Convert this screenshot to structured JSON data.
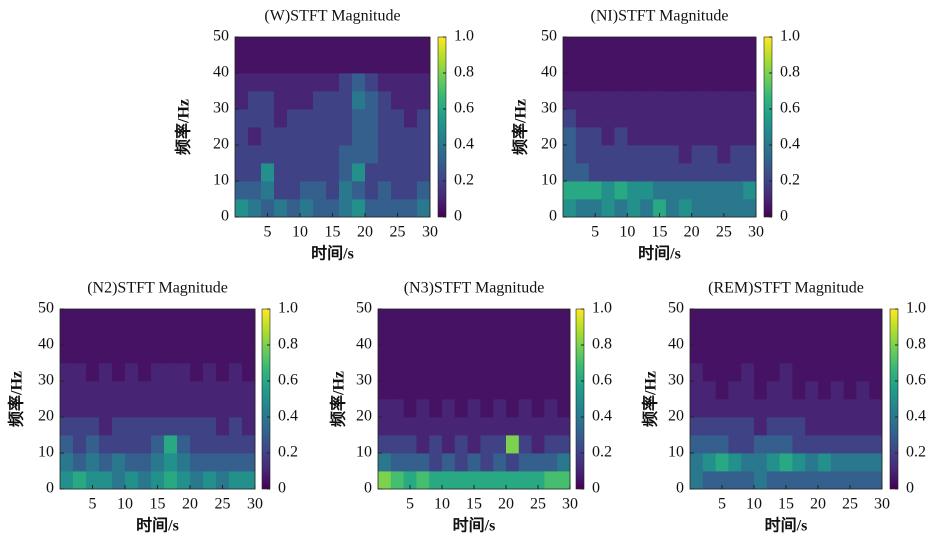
{
  "chart_data": [
    {
      "type": "heatmap",
      "title": "(W)STFT Magnitude",
      "xlabel": "时间/s",
      "ylabel": "频率/Hz",
      "xlim": [
        0,
        30
      ],
      "ylim": [
        0,
        50
      ],
      "xticks": [
        5,
        10,
        15,
        20,
        25,
        30
      ],
      "yticks": [
        0,
        10,
        20,
        30,
        40,
        50
      ],
      "clim": [
        0,
        1
      ],
      "cticks": [
        0,
        0.2,
        0.4,
        0.6,
        0.8,
        {
          "value": 1,
          "label": "1.0"
        }
      ],
      "xbins": [
        0,
        2,
        4,
        6,
        8,
        10,
        12,
        14,
        16,
        18,
        20,
        22,
        24,
        26,
        28,
        30
      ],
      "ybins": [
        0,
        5,
        10,
        15,
        20,
        25,
        30,
        35,
        40,
        45,
        50
      ],
      "z": [
        [
          0.5,
          0.4,
          0.3,
          0.4,
          0.3,
          0.4,
          0.3,
          0.3,
          0.4,
          0.5,
          0.3,
          0.3,
          0.3,
          0.3,
          0.4
        ],
        [
          0.3,
          0.3,
          0.4,
          0.2,
          0.2,
          0.3,
          0.3,
          0.2,
          0.4,
          0.3,
          0.2,
          0.3,
          0.2,
          0.2,
          0.3
        ],
        [
          0.2,
          0.2,
          0.5,
          0.2,
          0.2,
          0.2,
          0.2,
          0.2,
          0.3,
          0.5,
          0.2,
          0.2,
          0.2,
          0.2,
          0.2
        ],
        [
          0.2,
          0.2,
          0.2,
          0.2,
          0.2,
          0.2,
          0.2,
          0.2,
          0.3,
          0.3,
          0.3,
          0.2,
          0.2,
          0.2,
          0.2
        ],
        [
          0.2,
          0.1,
          0.2,
          0.2,
          0.2,
          0.2,
          0.2,
          0.2,
          0.2,
          0.3,
          0.3,
          0.2,
          0.2,
          0.2,
          0.2
        ],
        [
          0.2,
          0.2,
          0.2,
          0.1,
          0.2,
          0.2,
          0.2,
          0.2,
          0.2,
          0.3,
          0.3,
          0.2,
          0.2,
          0.1,
          0.2
        ],
        [
          0.1,
          0.2,
          0.2,
          0.1,
          0.1,
          0.1,
          0.2,
          0.2,
          0.2,
          0.4,
          0.3,
          0.2,
          0.1,
          0.1,
          0.1
        ],
        [
          0.1,
          0.1,
          0.1,
          0.1,
          0.1,
          0.1,
          0.1,
          0.1,
          0.2,
          0.3,
          0.2,
          0.1,
          0.1,
          0.1,
          0.1
        ],
        [
          0.05,
          0.05,
          0.05,
          0.05,
          0.05,
          0.05,
          0.05,
          0.05,
          0.05,
          0.05,
          0.05,
          0.05,
          0.05,
          0.05,
          0.05
        ],
        [
          0.05,
          0.05,
          0.05,
          0.05,
          0.05,
          0.05,
          0.05,
          0.05,
          0.05,
          0.05,
          0.05,
          0.05,
          0.05,
          0.05,
          0.05
        ]
      ]
    },
    {
      "type": "heatmap",
      "title": "(NI)STFT Magnitude",
      "xlabel": "时间/s",
      "ylabel": "频率/Hz",
      "xlim": [
        0,
        30
      ],
      "ylim": [
        0,
        50
      ],
      "xticks": [
        5,
        10,
        15,
        20,
        25,
        30
      ],
      "yticks": [
        0,
        10,
        20,
        30,
        40,
        50
      ],
      "clim": [
        0,
        1
      ],
      "cticks": [
        0,
        0.2,
        0.4,
        0.6,
        0.8,
        {
          "value": 1,
          "label": "1.0"
        }
      ],
      "xbins": [
        0,
        2,
        4,
        6,
        8,
        10,
        12,
        14,
        16,
        18,
        20,
        22,
        24,
        26,
        28,
        30
      ],
      "ybins": [
        0,
        5,
        10,
        15,
        20,
        25,
        30,
        35,
        40,
        45,
        50
      ],
      "z": [
        [
          0.5,
          0.4,
          0.4,
          0.5,
          0.4,
          0.5,
          0.4,
          0.6,
          0.4,
          0.5,
          0.4,
          0.4,
          0.4,
          0.4,
          0.4
        ],
        [
          0.6,
          0.6,
          0.6,
          0.5,
          0.6,
          0.5,
          0.5,
          0.4,
          0.4,
          0.4,
          0.4,
          0.4,
          0.4,
          0.4,
          0.5
        ],
        [
          0.3,
          0.3,
          0.2,
          0.2,
          0.2,
          0.2,
          0.2,
          0.2,
          0.2,
          0.2,
          0.2,
          0.2,
          0.2,
          0.2,
          0.2
        ],
        [
          0.3,
          0.2,
          0.2,
          0.2,
          0.2,
          0.2,
          0.2,
          0.2,
          0.2,
          0.1,
          0.2,
          0.2,
          0.1,
          0.2,
          0.2
        ],
        [
          0.3,
          0.2,
          0.2,
          0.1,
          0.2,
          0.1,
          0.1,
          0.1,
          0.1,
          0.1,
          0.1,
          0.1,
          0.1,
          0.1,
          0.1
        ],
        [
          0.2,
          0.1,
          0.1,
          0.1,
          0.1,
          0.1,
          0.1,
          0.1,
          0.1,
          0.1,
          0.1,
          0.1,
          0.1,
          0.1,
          0.1
        ],
        [
          0.1,
          0.1,
          0.1,
          0.1,
          0.1,
          0.1,
          0.1,
          0.1,
          0.1,
          0.1,
          0.1,
          0.1,
          0.1,
          0.1,
          0.1
        ],
        [
          0.05,
          0.05,
          0.05,
          0.05,
          0.05,
          0.05,
          0.05,
          0.05,
          0.05,
          0.05,
          0.05,
          0.05,
          0.05,
          0.05,
          0.05
        ],
        [
          0.05,
          0.05,
          0.05,
          0.05,
          0.05,
          0.05,
          0.05,
          0.05,
          0.05,
          0.05,
          0.05,
          0.05,
          0.05,
          0.05,
          0.05
        ],
        [
          0.05,
          0.05,
          0.05,
          0.05,
          0.05,
          0.05,
          0.05,
          0.05,
          0.05,
          0.05,
          0.05,
          0.05,
          0.05,
          0.05,
          0.05
        ]
      ]
    },
    {
      "type": "heatmap",
      "title": "(N2)STFT Magnitude",
      "xlabel": "时间/s",
      "ylabel": "频率/Hz",
      "xlim": [
        0,
        30
      ],
      "ylim": [
        0,
        50
      ],
      "xticks": [
        5,
        10,
        15,
        20,
        25,
        30
      ],
      "yticks": [
        0,
        10,
        20,
        30,
        40,
        50
      ],
      "clim": [
        0,
        1
      ],
      "cticks": [
        0,
        0.2,
        0.4,
        0.6,
        0.8,
        {
          "value": 1,
          "label": "1.0"
        }
      ],
      "xbins": [
        0,
        2,
        4,
        6,
        8,
        10,
        12,
        14,
        16,
        18,
        20,
        22,
        24,
        26,
        28,
        30
      ],
      "ybins": [
        0,
        5,
        10,
        15,
        20,
        25,
        30,
        35,
        40,
        45,
        50
      ],
      "z": [
        [
          0.5,
          0.6,
          0.5,
          0.5,
          0.4,
          0.5,
          0.4,
          0.5,
          0.6,
          0.5,
          0.4,
          0.5,
          0.4,
          0.5,
          0.5
        ],
        [
          0.4,
          0.3,
          0.4,
          0.3,
          0.4,
          0.3,
          0.3,
          0.4,
          0.5,
          0.4,
          0.3,
          0.3,
          0.3,
          0.3,
          0.3
        ],
        [
          0.3,
          0.2,
          0.3,
          0.2,
          0.2,
          0.2,
          0.2,
          0.3,
          0.6,
          0.3,
          0.2,
          0.2,
          0.2,
          0.2,
          0.2
        ],
        [
          0.2,
          0.2,
          0.2,
          0.1,
          0.2,
          0.2,
          0.2,
          0.2,
          0.2,
          0.2,
          0.2,
          0.2,
          0.1,
          0.2,
          0.1
        ],
        [
          0.1,
          0.1,
          0.1,
          0.1,
          0.1,
          0.1,
          0.1,
          0.1,
          0.1,
          0.1,
          0.1,
          0.1,
          0.1,
          0.1,
          0.1
        ],
        [
          0.1,
          0.1,
          0.1,
          0.1,
          0.1,
          0.1,
          0.1,
          0.1,
          0.1,
          0.1,
          0.1,
          0.1,
          0.1,
          0.1,
          0.1
        ],
        [
          0.1,
          0.1,
          0.05,
          0.1,
          0.05,
          0.1,
          0.05,
          0.1,
          0.1,
          0.1,
          0.05,
          0.1,
          0.05,
          0.1,
          0.05
        ],
        [
          0.05,
          0.05,
          0.05,
          0.05,
          0.05,
          0.05,
          0.05,
          0.05,
          0.05,
          0.05,
          0.05,
          0.05,
          0.05,
          0.05,
          0.05
        ],
        [
          0.05,
          0.05,
          0.05,
          0.05,
          0.05,
          0.05,
          0.05,
          0.05,
          0.05,
          0.05,
          0.05,
          0.05,
          0.05,
          0.05,
          0.05
        ],
        [
          0.05,
          0.05,
          0.05,
          0.05,
          0.05,
          0.05,
          0.05,
          0.05,
          0.05,
          0.05,
          0.05,
          0.05,
          0.05,
          0.05,
          0.05
        ]
      ]
    },
    {
      "type": "heatmap",
      "title": "(N3)STFT Magnitude",
      "xlabel": "时间/s",
      "ylabel": "频率/Hz",
      "xlim": [
        0,
        30
      ],
      "ylim": [
        0,
        50
      ],
      "xticks": [
        5,
        10,
        15,
        20,
        25,
        30
      ],
      "yticks": [
        0,
        10,
        20,
        30,
        40,
        50
      ],
      "clim": [
        0,
        1
      ],
      "cticks": [
        0,
        0.2,
        0.4,
        0.6,
        0.8,
        {
          "value": 1,
          "label": "1.0"
        }
      ],
      "xbins": [
        0,
        2,
        4,
        6,
        8,
        10,
        12,
        14,
        16,
        18,
        20,
        22,
        24,
        26,
        28,
        30
      ],
      "ybins": [
        0,
        5,
        10,
        15,
        20,
        25,
        30,
        35,
        40,
        45,
        50
      ],
      "z": [
        [
          0.8,
          0.7,
          0.6,
          0.7,
          0.6,
          0.6,
          0.6,
          0.6,
          0.6,
          0.6,
          0.6,
          0.6,
          0.6,
          0.7,
          0.7
        ],
        [
          0.4,
          0.3,
          0.3,
          0.3,
          0.2,
          0.3,
          0.2,
          0.3,
          0.2,
          0.3,
          0.2,
          0.3,
          0.3,
          0.3,
          0.4
        ],
        [
          0.2,
          0.2,
          0.2,
          0.1,
          0.2,
          0.1,
          0.2,
          0.1,
          0.2,
          0.2,
          0.8,
          0.2,
          0.1,
          0.2,
          0.2
        ],
        [
          0.1,
          0.1,
          0.1,
          0.1,
          0.1,
          0.1,
          0.1,
          0.1,
          0.1,
          0.1,
          0.1,
          0.1,
          0.1,
          0.1,
          0.1
        ],
        [
          0.1,
          0.1,
          0.05,
          0.1,
          0.05,
          0.1,
          0.05,
          0.1,
          0.05,
          0.1,
          0.05,
          0.1,
          0.05,
          0.1,
          0.05
        ],
        [
          0.05,
          0.05,
          0.05,
          0.05,
          0.05,
          0.05,
          0.05,
          0.05,
          0.05,
          0.05,
          0.05,
          0.05,
          0.05,
          0.05,
          0.05
        ],
        [
          0.05,
          0.05,
          0.05,
          0.05,
          0.05,
          0.05,
          0.05,
          0.05,
          0.05,
          0.05,
          0.05,
          0.05,
          0.05,
          0.05,
          0.05
        ],
        [
          0.05,
          0.05,
          0.05,
          0.05,
          0.05,
          0.05,
          0.05,
          0.05,
          0.05,
          0.05,
          0.05,
          0.05,
          0.05,
          0.05,
          0.05
        ],
        [
          0.05,
          0.05,
          0.05,
          0.05,
          0.05,
          0.05,
          0.05,
          0.05,
          0.05,
          0.05,
          0.05,
          0.05,
          0.05,
          0.05,
          0.05
        ],
        [
          0.05,
          0.05,
          0.05,
          0.05,
          0.05,
          0.05,
          0.05,
          0.05,
          0.05,
          0.05,
          0.05,
          0.05,
          0.05,
          0.05,
          0.05
        ]
      ]
    },
    {
      "type": "heatmap",
      "title": "(REM)STFT Magnitude",
      "xlabel": "时间/s",
      "ylabel": "频率/Hz",
      "xlim": [
        0,
        30
      ],
      "ylim": [
        0,
        50
      ],
      "xticks": [
        5,
        10,
        15,
        20,
        25,
        30
      ],
      "yticks": [
        0,
        10,
        20,
        30,
        40,
        50
      ],
      "clim": [
        0,
        1
      ],
      "cticks": [
        0,
        0.2,
        0.4,
        0.6,
        0.8,
        {
          "value": 1,
          "label": "1.0"
        }
      ],
      "xbins": [
        0,
        2,
        4,
        6,
        8,
        10,
        12,
        14,
        16,
        18,
        20,
        22,
        24,
        26,
        28,
        30
      ],
      "ybins": [
        0,
        5,
        10,
        15,
        20,
        25,
        30,
        35,
        40,
        45,
        50
      ],
      "z": [
        [
          0.4,
          0.3,
          0.3,
          0.3,
          0.3,
          0.4,
          0.3,
          0.3,
          0.3,
          0.3,
          0.3,
          0.3,
          0.3,
          0.3,
          0.3
        ],
        [
          0.4,
          0.5,
          0.6,
          0.5,
          0.4,
          0.4,
          0.5,
          0.6,
          0.5,
          0.4,
          0.5,
          0.4,
          0.4,
          0.4,
          0.4
        ],
        [
          0.3,
          0.3,
          0.3,
          0.2,
          0.2,
          0.3,
          0.3,
          0.3,
          0.2,
          0.2,
          0.2,
          0.2,
          0.2,
          0.2,
          0.2
        ],
        [
          0.2,
          0.2,
          0.2,
          0.2,
          0.2,
          0.1,
          0.2,
          0.2,
          0.2,
          0.1,
          0.1,
          0.1,
          0.1,
          0.1,
          0.1
        ],
        [
          0.1,
          0.1,
          0.1,
          0.1,
          0.1,
          0.1,
          0.1,
          0.1,
          0.1,
          0.1,
          0.1,
          0.1,
          0.1,
          0.1,
          0.1
        ],
        [
          0.1,
          0.1,
          0.05,
          0.1,
          0.1,
          0.05,
          0.1,
          0.1,
          0.05,
          0.1,
          0.05,
          0.1,
          0.05,
          0.1,
          0.05
        ],
        [
          0.1,
          0.05,
          0.05,
          0.05,
          0.1,
          0.05,
          0.05,
          0.1,
          0.05,
          0.05,
          0.05,
          0.05,
          0.05,
          0.05,
          0.05
        ],
        [
          0.05,
          0.05,
          0.05,
          0.05,
          0.05,
          0.05,
          0.05,
          0.05,
          0.05,
          0.05,
          0.05,
          0.05,
          0.05,
          0.05,
          0.05
        ],
        [
          0.05,
          0.05,
          0.05,
          0.05,
          0.05,
          0.05,
          0.05,
          0.05,
          0.05,
          0.05,
          0.05,
          0.05,
          0.05,
          0.05,
          0.05
        ],
        [
          0.05,
          0.05,
          0.05,
          0.05,
          0.05,
          0.05,
          0.05,
          0.05,
          0.05,
          0.05,
          0.05,
          0.05,
          0.05,
          0.05,
          0.05
        ]
      ]
    }
  ],
  "colormap": [
    "#440154",
    "#482878",
    "#3e4989",
    "#31688e",
    "#26828e",
    "#1f9e89",
    "#35b779",
    "#6ece58",
    "#b5de2b",
    "#fde725"
  ]
}
